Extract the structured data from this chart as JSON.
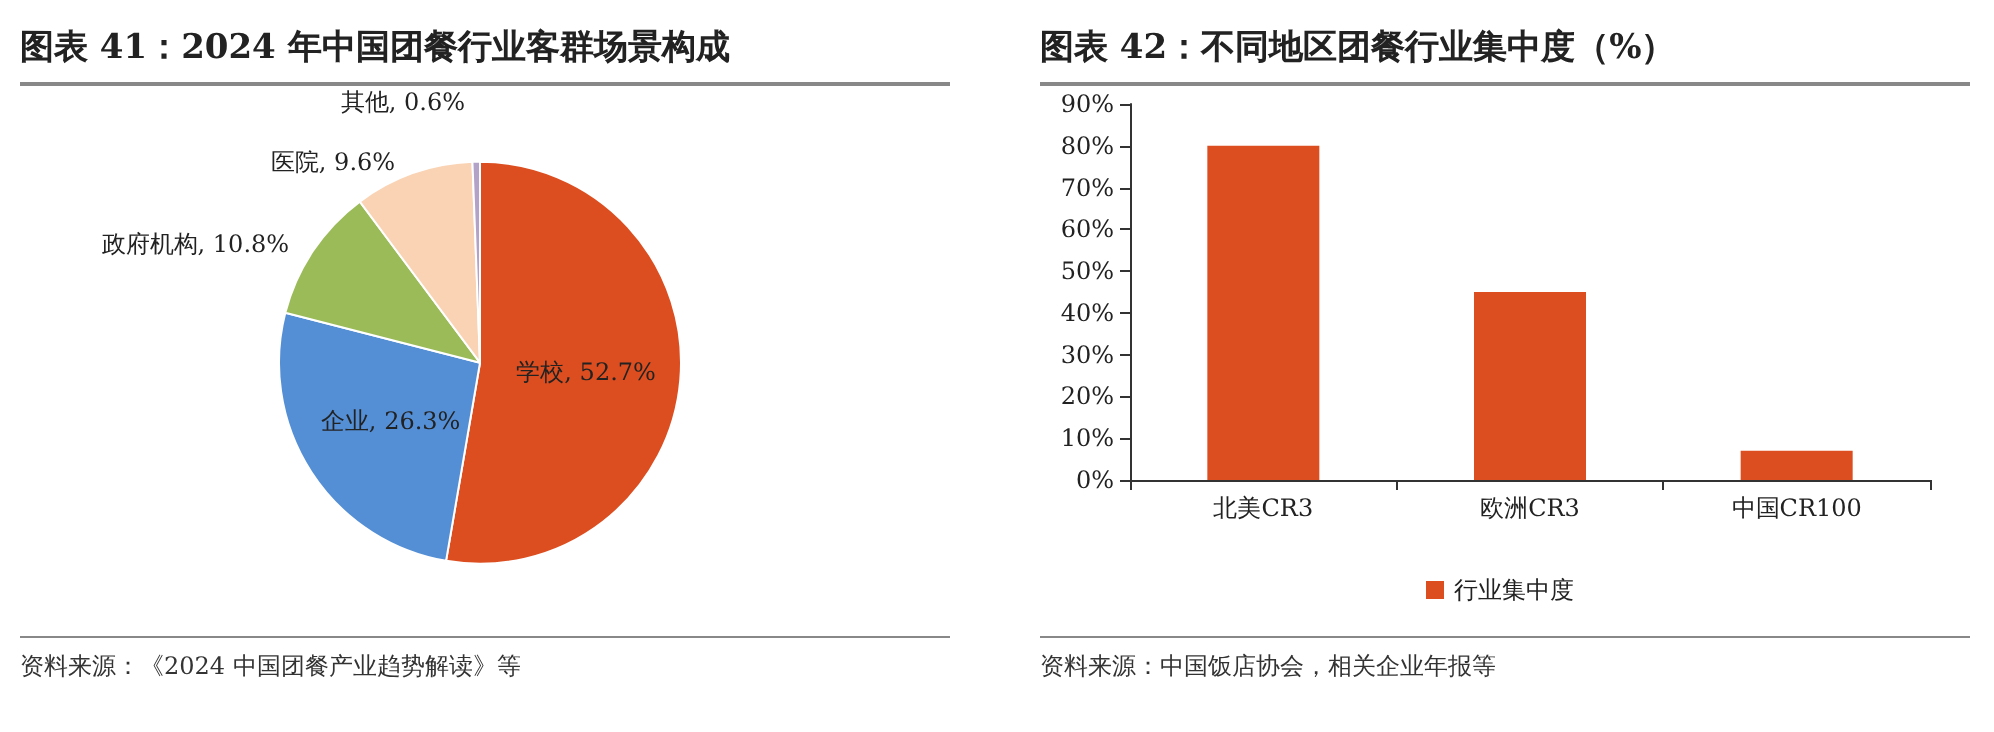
{
  "chart_data": [
    {
      "type": "pie",
      "title": "图表 41：2024 年中国团餐行业客群场景构成",
      "categories": [
        "学校",
        "企业",
        "政府机构",
        "医院",
        "其他"
      ],
      "values": [
        52.7,
        26.3,
        10.8,
        9.6,
        0.6
      ],
      "colors": [
        "#dc4e20",
        "#548fd6",
        "#9bbb59",
        "#f9d3b4",
        "#b3a2c7"
      ],
      "value_labels": [
        "52.7%",
        "26.3%",
        "10.8%",
        "9.6%",
        "0.6%"
      ],
      "annotations": [
        "资料来源：《2024 中国团餐产业趋势解读》等"
      ]
    },
    {
      "type": "bar",
      "title": "图表 42：不同地区团餐行业集中度（%）",
      "categories": [
        "北美CR3",
        "欧洲CR3",
        "中国CR100"
      ],
      "series": [
        {
          "name": "行业集中度",
          "color": "#dc4e20",
          "values": [
            80,
            45,
            7
          ]
        }
      ],
      "ylim": [
        0,
        90
      ],
      "yticks": [
        {
          "value": 0,
          "label": "0%"
        },
        {
          "value": 10,
          "label": "10%"
        },
        {
          "value": 20,
          "label": "20%"
        },
        {
          "value": 30,
          "label": "30%"
        },
        {
          "value": 40,
          "label": "40%"
        },
        {
          "value": 50,
          "label": "50%"
        },
        {
          "value": 60,
          "label": "60%"
        },
        {
          "value": 70,
          "label": "70%"
        },
        {
          "value": 80,
          "label": "80%"
        },
        {
          "value": 90,
          "label": "90%"
        }
      ],
      "grid": false,
      "legend": "bottom",
      "annotations": [
        "资料来源：中国饭店协会，相关企业年报等"
      ]
    }
  ]
}
